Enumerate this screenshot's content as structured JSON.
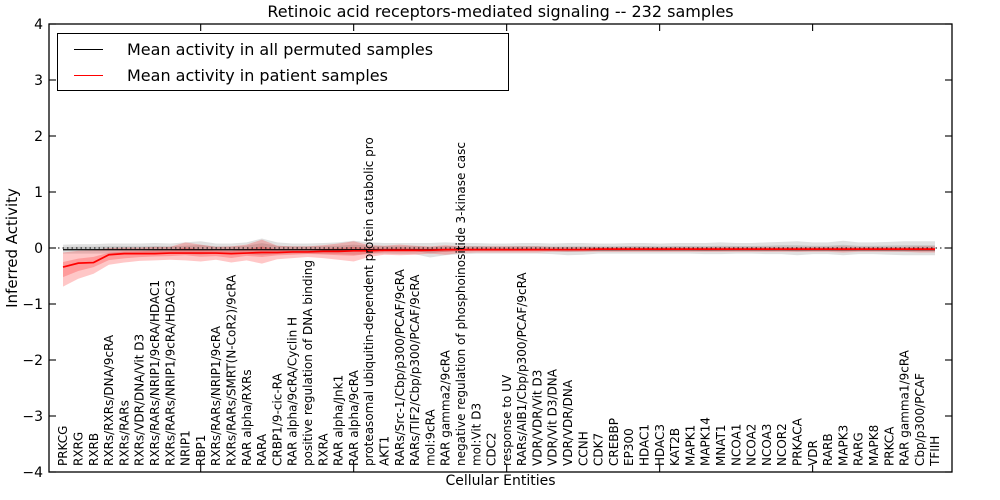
{
  "chart_data": {
    "type": "line",
    "title": "Retinoic acid receptors-mediated signaling -- 232 samples",
    "xlabel": "Cellular Entities",
    "ylabel": "Inferred Activity",
    "ylim": [
      -4,
      4
    ],
    "yticks": [
      4,
      3,
      2,
      1,
      0,
      -1,
      -2,
      -3,
      -4
    ],
    "x_major_ticks": [
      10,
      20,
      30,
      40,
      50
    ],
    "grid": false,
    "legend_position": "upper left",
    "zero_line_style": "dotted",
    "tick_direction": "in",
    "colors": {
      "permuted": "#000000",
      "patient": "#ff0000",
      "frame": "#000000",
      "background": "#ffffff"
    },
    "categories": [
      "PRKCG",
      "RXRG",
      "RXRB",
      "RXRs/RXRs/DNA/9cRA",
      "RXRs/RARs",
      "RXRs/VDR/DNA/Vit D3",
      "RXRs/RARs/NRIP1/9cRA/HDAC1",
      "RXRs/RARs/NRIP1/9cRA/HDAC3",
      "NRIP1",
      "RBP1",
      "RXRs/RARs/NRIP1/9cRA",
      "RXRs/RARs/SMRT(N-CoR2)/9cRA",
      "RAR alpha/RXRs",
      "RARA",
      "CRBP1/9-cic-RA",
      "RAR alpha/9cRA/Cyclin H",
      "positive regulation of DNA binding",
      "RXRA",
      "RAR alpha/Jnk1",
      "RAR alpha/9cRA",
      "proteasomal ubiquitin-dependent protein catabolic pro",
      "AKT1",
      "RARs/Src-1/Cbp/p300/PCAF/9cRA",
      "RARs/TIF2/Cbp/p300/PCAF/9cRA",
      "mol:9cRA",
      "RAR gamma2/9cRA",
      "negative regulation of phosphoinositide 3-kinase casc",
      "mol:Vit D3",
      "CDC2",
      "response to UV",
      "RARs/AIB1/Cbp/p300/PCAF/9cRA",
      "VDR/VDR/Vit D3",
      "VDR/Vit D3/DNA",
      "VDR/VDR/DNA",
      "CCNH",
      "CDK7",
      "CREBBP",
      "EP300",
      "HDAC1",
      "HDAC3",
      "KAT2B",
      "MAPK1",
      "MAPK14",
      "MNAT1",
      "NCOA1",
      "NCOA2",
      "NCOA3",
      "NCOR2",
      "PRKACA",
      "VDR",
      "RARB",
      "MAPK3",
      "RARG",
      "MAPK8",
      "PRKCA",
      "RAR gamma1/9cRA",
      "Cbp/p300/PCAF",
      "TFIIH"
    ],
    "series": [
      {
        "name": "Mean activity in all permuted samples",
        "color": "#000000",
        "values": [
          -0.03,
          -0.03,
          -0.03,
          -0.03,
          -0.03,
          -0.03,
          -0.03,
          -0.03,
          -0.03,
          -0.03,
          -0.03,
          -0.03,
          -0.03,
          -0.03,
          -0.03,
          -0.03,
          -0.03,
          -0.03,
          -0.03,
          -0.03,
          -0.03,
          -0.03,
          -0.03,
          -0.03,
          -0.03,
          -0.03,
          -0.03,
          -0.03,
          -0.03,
          -0.03,
          -0.03,
          -0.03,
          -0.03,
          -0.03,
          -0.03,
          -0.03,
          -0.03,
          -0.03,
          -0.03,
          -0.03,
          -0.03,
          -0.03,
          -0.03,
          -0.03,
          -0.03,
          -0.03,
          -0.03,
          -0.03,
          -0.03,
          -0.03,
          -0.03,
          -0.03,
          -0.03,
          -0.03,
          -0.03,
          -0.03,
          -0.03,
          -0.03
        ]
      },
      {
        "name": "Mean activity in patient samples",
        "color": "#ff0000",
        "values": [
          -0.34,
          -0.27,
          -0.26,
          -0.12,
          -0.1,
          -0.1,
          -0.1,
          -0.09,
          -0.09,
          -0.09,
          -0.09,
          -0.1,
          -0.09,
          -0.08,
          -0.08,
          -0.07,
          -0.07,
          -0.06,
          -0.06,
          -0.05,
          -0.05,
          -0.04,
          -0.04,
          -0.04,
          -0.04,
          -0.03,
          -0.03,
          -0.03,
          -0.03,
          -0.03,
          -0.03,
          -0.03,
          -0.03,
          -0.03,
          -0.03,
          -0.02,
          -0.02,
          -0.02,
          -0.02,
          -0.02,
          -0.02,
          -0.02,
          -0.02,
          -0.02,
          -0.02,
          -0.02,
          -0.02,
          -0.02,
          -0.02,
          -0.02,
          -0.02,
          -0.02,
          -0.02,
          -0.02,
          -0.02,
          -0.02,
          -0.02,
          -0.02
        ]
      }
    ],
    "bands": [
      {
        "series": "Mean activity in all permuted samples",
        "color": "#000000",
        "opacity": 0.12,
        "upper": [
          0.06,
          0.07,
          0.07,
          0.08,
          0.08,
          0.08,
          0.09,
          0.08,
          0.1,
          0.12,
          0.08,
          0.08,
          0.1,
          0.17,
          0.1,
          0.08,
          0.08,
          0.09,
          0.1,
          0.13,
          0.1,
          0.09,
          0.09,
          0.09,
          0.09,
          0.1,
          0.09,
          0.09,
          0.08,
          0.08,
          0.09,
          0.09,
          0.08,
          0.09,
          0.09,
          0.08,
          0.08,
          0.09,
          0.09,
          0.08,
          0.09,
          0.09,
          0.09,
          0.1,
          0.09,
          0.09,
          0.1,
          0.11,
          0.12,
          0.1,
          0.1,
          0.13,
          0.1,
          0.1,
          0.11,
          0.12,
          0.12,
          0.12
        ],
        "lower": [
          -0.1,
          -0.1,
          -0.1,
          -0.1,
          -0.1,
          -0.1,
          -0.11,
          -0.1,
          -0.11,
          -0.12,
          -0.1,
          -0.11,
          -0.11,
          -0.13,
          -0.11,
          -0.1,
          -0.1,
          -0.11,
          -0.11,
          -0.12,
          -0.11,
          -0.1,
          -0.11,
          -0.11,
          -0.17,
          -0.13,
          -0.11,
          -0.1,
          -0.1,
          -0.1,
          -0.1,
          -0.1,
          -0.11,
          -0.13,
          -0.12,
          -0.1,
          -0.1,
          -0.1,
          -0.1,
          -0.1,
          -0.1,
          -0.1,
          -0.11,
          -0.11,
          -0.1,
          -0.1,
          -0.11,
          -0.11,
          -0.13,
          -0.11,
          -0.11,
          -0.13,
          -0.11,
          -0.11,
          -0.12,
          -0.13,
          -0.13,
          -0.13
        ]
      },
      {
        "series": "Mean activity in patient samples",
        "color": "#ff0000",
        "opacity": 0.22,
        "upper": [
          -0.08,
          -0.05,
          -0.04,
          0.0,
          0.01,
          0.01,
          0.02,
          0.02,
          0.1,
          0.06,
          0.02,
          0.03,
          0.06,
          0.15,
          0.04,
          0.03,
          0.03,
          0.05,
          0.08,
          0.12,
          0.05,
          0.04,
          0.06,
          0.04,
          0.03,
          0.05,
          0.03,
          0.03,
          0.03,
          0.03,
          0.03,
          0.03,
          0.02,
          0.02,
          0.02,
          0.02,
          0.02,
          0.02,
          0.02,
          0.02,
          0.02,
          0.02,
          0.02,
          0.02,
          0.02,
          0.02,
          0.02,
          0.02,
          0.02,
          0.02,
          0.02,
          0.03,
          0.02,
          0.02,
          0.02,
          0.02,
          0.03,
          0.03
        ],
        "lower": [
          -0.69,
          -0.55,
          -0.46,
          -0.3,
          -0.26,
          -0.23,
          -0.22,
          -0.21,
          -0.22,
          -0.24,
          -0.21,
          -0.26,
          -0.22,
          -0.28,
          -0.2,
          -0.18,
          -0.16,
          -0.18,
          -0.21,
          -0.24,
          -0.16,
          -0.12,
          -0.13,
          -0.12,
          -0.1,
          -0.12,
          -0.09,
          -0.08,
          -0.08,
          -0.08,
          -0.08,
          -0.08,
          -0.07,
          -0.07,
          -0.07,
          -0.07,
          -0.07,
          -0.07,
          -0.07,
          -0.07,
          -0.07,
          -0.07,
          -0.07,
          -0.07,
          -0.07,
          -0.07,
          -0.07,
          -0.07,
          -0.07,
          -0.07,
          -0.07,
          -0.08,
          -0.07,
          -0.07,
          -0.07,
          -0.07,
          -0.08,
          -0.08
        ]
      }
    ]
  }
}
